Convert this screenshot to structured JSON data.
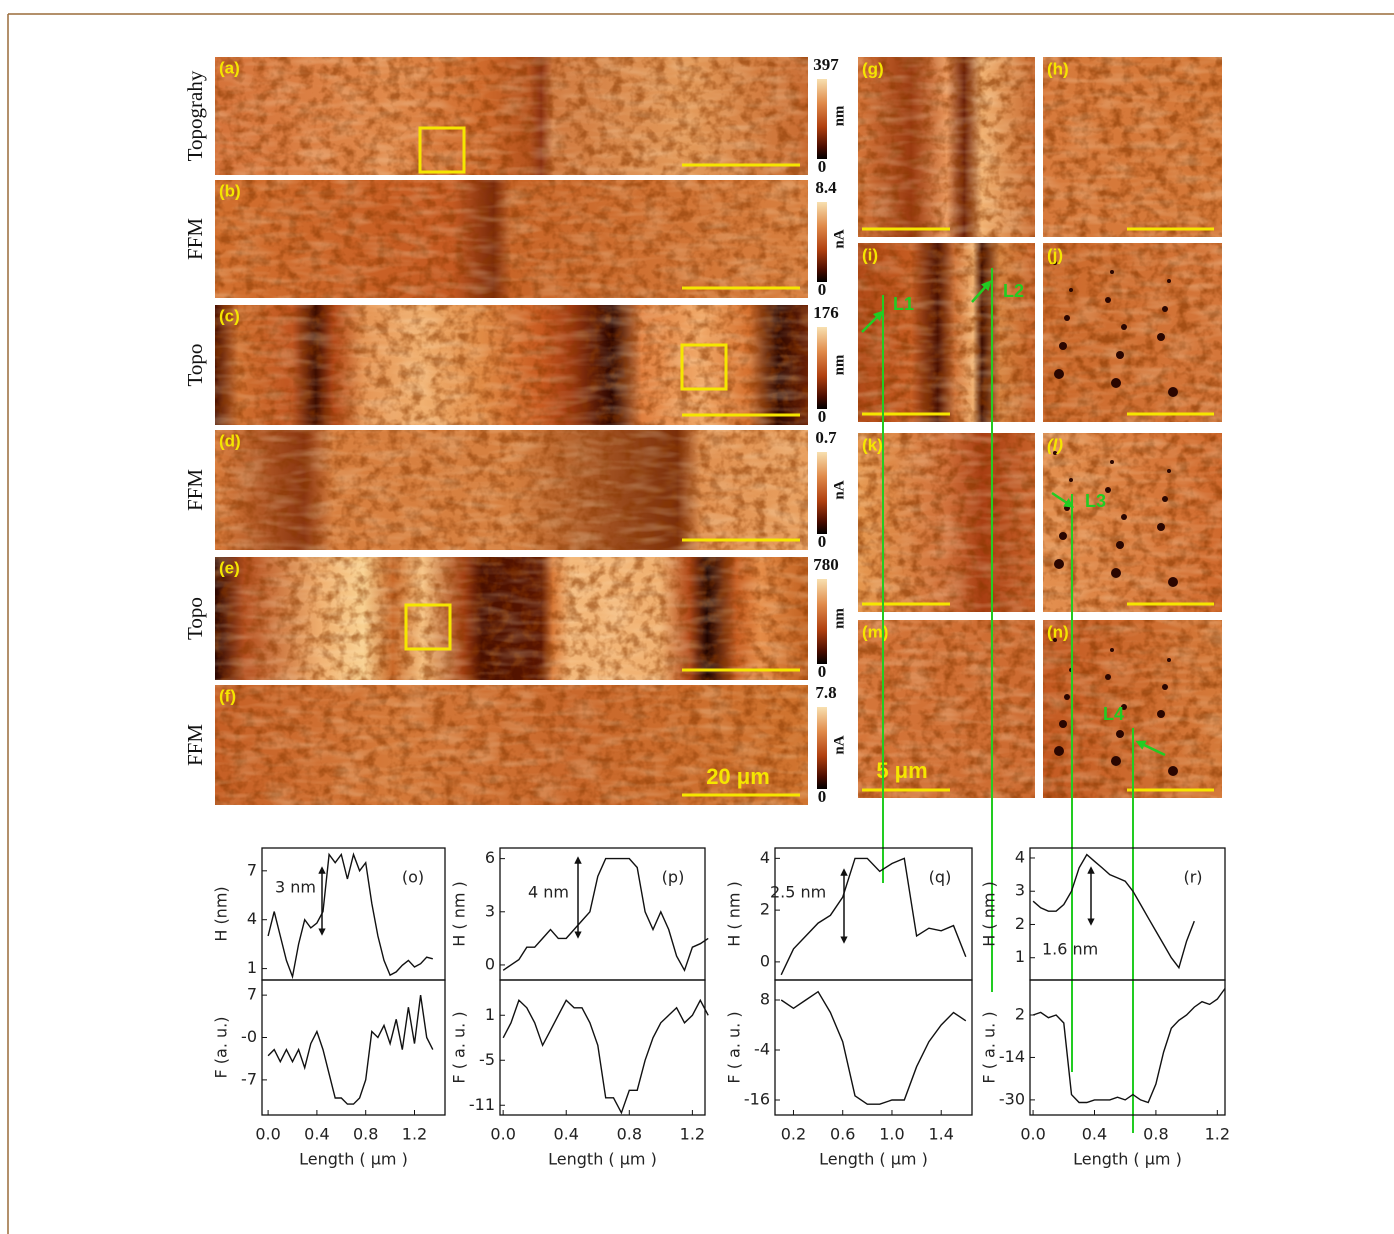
{
  "figure": {
    "left_panels": [
      {
        "letter": "(a)",
        "side_label": "Topograhy",
        "scale_top": 397,
        "unit": "nm",
        "scale_bottom": 0
      },
      {
        "letter": "(b)",
        "side_label": "FFM",
        "scale_top": 8.4,
        "unit": "nA",
        "scale_bottom": 0
      },
      {
        "letter": "(c)",
        "side_label": "Topo",
        "scale_top": 176,
        "unit": "nm",
        "scale_bottom": 0
      },
      {
        "letter": "(d)",
        "side_label": "FFM",
        "scale_top": 0.7,
        "unit": "nA",
        "scale_bottom": 0
      },
      {
        "letter": "(e)",
        "side_label": "Topo",
        "scale_top": 780,
        "unit": "nm",
        "scale_bottom": 0
      },
      {
        "letter": "(f)",
        "side_label": "FFM",
        "scale_top": 7.8,
        "unit": "nA",
        "scale_bottom": 0
      }
    ],
    "right_panels": [
      "(g)",
      "(h)",
      "(i)",
      "(j)",
      "(k)",
      "(l)",
      "(m)",
      "(n)"
    ],
    "scale_bar_labels": [
      "20 μm",
      "5 μm"
    ],
    "line_markers": [
      "L1",
      "L2",
      "L3",
      "L4"
    ]
  },
  "chart_data": [
    {
      "type": "line",
      "panel": "(o)",
      "annotation": "3 nm",
      "xlabel": "Length ( μm )",
      "x": [
        0,
        0.05,
        0.1,
        0.15,
        0.2,
        0.25,
        0.3,
        0.35,
        0.4,
        0.45,
        0.5,
        0.55,
        0.6,
        0.65,
        0.7,
        0.75,
        0.8,
        0.85,
        0.9,
        0.95,
        1.0,
        1.05,
        1.1,
        1.15,
        1.2,
        1.25,
        1.3,
        1.35
      ],
      "xlim": [
        -0.05,
        1.45
      ],
      "xticks": [
        {
          "value": 0,
          "label": "0.0"
        },
        0.4,
        0.8,
        1.2
      ],
      "top": {
        "ylabel": "H (nm)",
        "ylim": [
          0.3,
          8.4
        ],
        "yticks": [
          1,
          4,
          7
        ],
        "values": [
          3,
          4.5,
          3,
          1.5,
          0.5,
          2.5,
          4,
          3.5,
          3.8,
          4.5,
          8,
          7.5,
          8,
          6.5,
          8,
          7,
          7.5,
          5,
          3,
          1.5,
          0.6,
          0.8,
          1.2,
          1.5,
          1.1,
          1.3,
          1.7,
          1.6
        ]
      },
      "bottom": {
        "ylabel": "F (a. u.)",
        "ylim": [
          -12.8,
          9.5
        ],
        "yticks": [
          7,
          {
            "value": 0,
            "label": "-0"
          },
          -7
        ],
        "values": [
          -3,
          -2,
          -4,
          -2,
          -4,
          -2,
          -5,
          -1,
          1,
          -2,
          -6,
          -10,
          -10,
          -11,
          -11,
          -10,
          -7,
          1,
          0,
          2,
          -1,
          3,
          -2,
          5,
          -1,
          7,
          0,
          -2
        ]
      },
      "color": "#111111"
    },
    {
      "type": "line",
      "panel": "(p)",
      "annotation": "4 nm",
      "xlabel": "Length ( μm )",
      "x": [
        0,
        0.05,
        0.1,
        0.15,
        0.2,
        0.25,
        0.3,
        0.35,
        0.4,
        0.45,
        0.5,
        0.55,
        0.6,
        0.65,
        0.7,
        0.75,
        0.8,
        0.85,
        0.9,
        0.95,
        1.0,
        1.05,
        1.1,
        1.15,
        1.2,
        1.25,
        1.3
      ],
      "xlim": [
        -0.02,
        1.28
      ],
      "xticks": [
        {
          "value": 0,
          "label": "0.0"
        },
        0.4,
        0.8,
        1.2
      ],
      "top": {
        "ylabel": "H ( nm )",
        "ylim": [
          -0.85,
          6.6
        ],
        "yticks": [
          0,
          3,
          6
        ],
        "values": [
          -0.3,
          0,
          0.3,
          1,
          1,
          1.5,
          2,
          1.5,
          1.5,
          2,
          2.5,
          3,
          5,
          6,
          6,
          6,
          6,
          5.5,
          3,
          2,
          3,
          2,
          0.5,
          -0.3,
          1,
          1.2,
          1.5
        ]
      },
      "bottom": {
        "ylabel": "F ( a. u. )",
        "ylim": [
          -12.3,
          5.7
        ],
        "yticks": [
          1,
          -5,
          -11
        ],
        "values": [
          -2,
          0,
          3,
          2,
          0,
          -3,
          -1,
          1,
          3,
          2,
          2,
          0,
          -3,
          -10,
          -10,
          -12,
          -9,
          -9,
          -5,
          -2,
          0,
          1,
          2,
          0,
          1,
          3,
          1
        ]
      },
      "color": "#111111"
    },
    {
      "type": "line",
      "panel": "(q)",
      "annotation": "2.5 nm",
      "xlabel": "Length ( μm )",
      "x": [
        0.1,
        0.2,
        0.3,
        0.4,
        0.5,
        0.6,
        0.7,
        0.8,
        0.9,
        1.0,
        1.1,
        1.2,
        1.3,
        1.4,
        1.5,
        1.6
      ],
      "xlim": [
        0.05,
        1.65
      ],
      "xticks": [
        0.2,
        0.6,
        {
          "value": 1,
          "label": "1.0"
        },
        1.4
      ],
      "top": {
        "ylabel": "H ( nm )",
        "ylim": [
          -0.7,
          4.4
        ],
        "yticks": [
          0,
          2,
          4
        ],
        "values": [
          -0.5,
          0.5,
          1,
          1.5,
          1.8,
          2.5,
          4,
          4,
          3.5,
          3.8,
          4,
          1,
          1.3,
          1.2,
          1.4,
          0.2
        ]
      },
      "bottom": {
        "ylabel": "F ( a. u. )",
        "ylim": [
          -19.6,
          12.8
        ],
        "yticks": [
          8,
          -4,
          -16
        ],
        "values": [
          8,
          6,
          8,
          10,
          5,
          -2,
          -15,
          -17,
          -17,
          -16,
          -16,
          -8,
          -2,
          2,
          5,
          3
        ]
      },
      "color": "#111111"
    },
    {
      "type": "line",
      "panel": "(r)",
      "annotation": "1.6 nm",
      "xlabel": "Length ( μm )",
      "x": [
        0,
        0.05,
        0.1,
        0.15,
        0.2,
        0.25,
        0.3,
        0.35,
        0.4,
        0.45,
        0.5,
        0.55,
        0.6,
        0.65,
        0.7,
        0.75,
        0.8,
        0.85,
        0.9,
        0.95,
        1.0,
        1.05,
        1.1,
        1.15,
        1.2,
        1.25
      ],
      "xlim": [
        -0.02,
        1.25
      ],
      "xticks": [
        {
          "value": 0,
          "label": "0.0"
        },
        0.4,
        0.8,
        1.2
      ],
      "top": {
        "ylabel": "H ( nm )",
        "ylim": [
          0.33,
          4.3
        ],
        "yticks": [
          1,
          2,
          3,
          4
        ],
        "values": [
          2.7,
          2.5,
          2.4,
          2.4,
          2.6,
          3,
          3.7,
          4.1,
          3.9,
          3.7,
          3.5,
          3.4,
          3.3,
          3,
          2.6,
          2.2,
          1.8,
          1.4,
          1,
          0.7,
          1.5,
          2.1,
          null,
          null,
          null,
          null
        ]
      },
      "bottom": {
        "ylabel": "F ( a. u. )",
        "ylim": [
          -35.7,
          15.2
        ],
        "yticks": [
          2,
          -14,
          -30
        ],
        "values": [
          2,
          3,
          1,
          2,
          -1,
          -28,
          -31,
          -31,
          -30,
          -30,
          -30,
          -29,
          -30,
          -28,
          -30,
          -31,
          -24,
          -12,
          -3,
          0,
          2,
          5,
          7,
          6,
          8,
          12
        ]
      },
      "color": "#111111"
    }
  ]
}
